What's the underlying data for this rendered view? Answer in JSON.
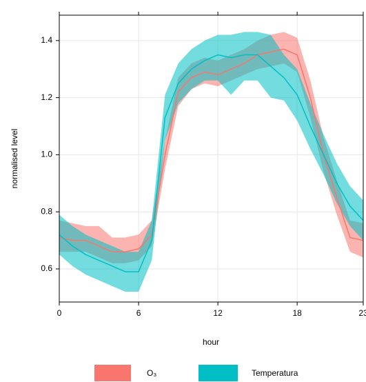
{
  "chart_data": {
    "type": "line",
    "x_label": "hour",
    "y_label": "normalised level",
    "x": [
      0,
      1,
      2,
      3,
      4,
      5,
      6,
      7,
      8,
      9,
      10,
      11,
      12,
      13,
      14,
      15,
      16,
      17,
      18,
      19,
      20,
      21,
      22,
      23
    ],
    "series": [
      {
        "name": "O₃",
        "color": "#f8766d",
        "values": [
          0.71,
          0.7,
          0.7,
          0.68,
          0.66,
          0.66,
          0.67,
          0.72,
          1.0,
          1.22,
          1.27,
          1.29,
          1.28,
          1.3,
          1.32,
          1.35,
          1.36,
          1.37,
          1.35,
          1.2,
          1.0,
          0.85,
          0.71,
          0.7
        ],
        "lower": [
          0.66,
          0.66,
          0.66,
          0.64,
          0.62,
          0.62,
          0.63,
          0.68,
          0.95,
          1.17,
          1.23,
          1.25,
          1.24,
          1.26,
          1.28,
          1.3,
          1.31,
          1.32,
          1.29,
          1.13,
          0.94,
          0.79,
          0.66,
          0.64
        ],
        "upper": [
          0.77,
          0.76,
          0.75,
          0.75,
          0.71,
          0.71,
          0.72,
          0.77,
          1.05,
          1.27,
          1.32,
          1.34,
          1.33,
          1.35,
          1.37,
          1.4,
          1.42,
          1.43,
          1.41,
          1.26,
          1.06,
          0.91,
          0.77,
          0.76
        ]
      },
      {
        "name": "Temperatura",
        "color": "#00bfc4",
        "values": [
          0.72,
          0.68,
          0.65,
          0.63,
          0.61,
          0.59,
          0.59,
          0.7,
          1.13,
          1.25,
          1.3,
          1.33,
          1.35,
          1.34,
          1.35,
          1.35,
          1.31,
          1.27,
          1.21,
          1.1,
          1.0,
          0.9,
          0.82,
          0.77
        ],
        "lower": [
          0.65,
          0.61,
          0.58,
          0.56,
          0.54,
          0.52,
          0.52,
          0.63,
          1.05,
          1.18,
          1.23,
          1.26,
          1.26,
          1.21,
          1.26,
          1.26,
          1.2,
          1.19,
          1.12,
          1.02,
          0.93,
          0.83,
          0.75,
          0.7
        ],
        "upper": [
          0.79,
          0.75,
          0.72,
          0.7,
          0.68,
          0.66,
          0.66,
          0.77,
          1.21,
          1.32,
          1.37,
          1.4,
          1.42,
          1.42,
          1.43,
          1.43,
          1.42,
          1.35,
          1.3,
          1.18,
          1.07,
          0.97,
          0.89,
          0.84
        ]
      }
    ],
    "xlim": [
      0,
      23
    ],
    "xticks": [
      0,
      6,
      12,
      18,
      23
    ],
    "ylim": [
      0.484,
      1.489
    ],
    "yticks": [
      {
        "value": 0.6,
        "label": "0.6"
      },
      {
        "value": 0.8,
        "label": "0.8"
      },
      {
        "value": 1.0,
        "label": "1.0"
      },
      {
        "value": 1.2,
        "label": "1.2"
      },
      {
        "value": 1.4,
        "label": "1.4"
      }
    ],
    "grid": true,
    "legend": "bottom"
  }
}
